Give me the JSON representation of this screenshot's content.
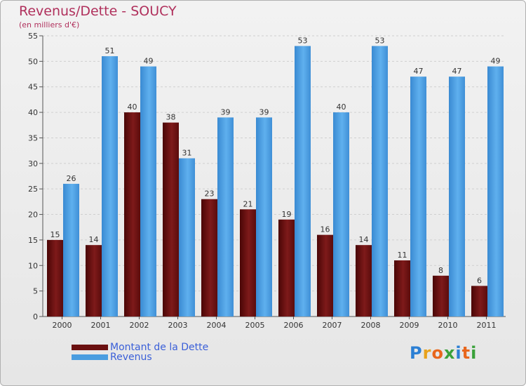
{
  "header": {
    "title": "Revenus/Dette - SOUCY",
    "subtitle": "(en milliers d'€)"
  },
  "colors": {
    "dette": "#6a1010",
    "revenus": "#4a9de0",
    "title": "#b0305c",
    "legend_text": "#3a5fd8"
  },
  "chart_data": {
    "type": "bar",
    "title": "Revenus/Dette - SOUCY",
    "subtitle": "(en milliers d'€)",
    "categories": [
      "2000",
      "2001",
      "2002",
      "2003",
      "2004",
      "2005",
      "2006",
      "2007",
      "2008",
      "2009",
      "2010",
      "2011"
    ],
    "series": [
      {
        "name": "Montant de la Dette",
        "values": [
          15,
          14,
          40,
          38,
          23,
          21,
          19,
          16,
          14,
          11,
          8,
          6
        ]
      },
      {
        "name": "Revenus",
        "values": [
          26,
          51,
          49,
          31,
          39,
          39,
          53,
          40,
          53,
          47,
          47,
          49
        ]
      }
    ],
    "ylim": [
      0,
      55
    ],
    "yticks": [
      0,
      5,
      10,
      15,
      20,
      25,
      30,
      35,
      40,
      45,
      50,
      55
    ],
    "grid": "horizontal-dashed",
    "legend": "bottom-left"
  },
  "logo": {
    "letters": [
      "P",
      "r",
      "o",
      "x",
      "i",
      "t",
      "i"
    ]
  }
}
